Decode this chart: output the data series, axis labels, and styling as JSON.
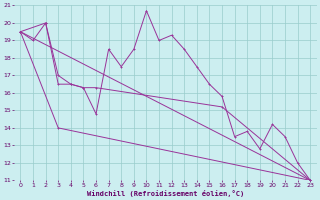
{
  "xlabel": "Windchill (Refroidissement éolien,°C)",
  "background_color": "#cceef0",
  "grid_color": "#99cccc",
  "line_color": "#993399",
  "xlim": [
    -0.5,
    23.5
  ],
  "ylim": [
    11,
    21
  ],
  "yticks": [
    11,
    12,
    13,
    14,
    15,
    16,
    17,
    18,
    19,
    20,
    21
  ],
  "xticks": [
    0,
    1,
    2,
    3,
    4,
    5,
    6,
    7,
    8,
    9,
    10,
    11,
    12,
    13,
    14,
    15,
    16,
    17,
    18,
    19,
    20,
    21,
    22,
    23
  ],
  "line1_x": [
    0,
    1,
    2,
    3,
    4,
    5,
    6,
    7,
    8,
    9,
    10,
    11,
    12,
    13,
    14,
    15,
    16,
    17,
    18,
    19,
    20,
    21,
    22,
    23
  ],
  "line1_y": [
    19.5,
    19.0,
    20.0,
    17.0,
    16.5,
    16.3,
    14.8,
    18.5,
    17.5,
    18.5,
    20.7,
    19.0,
    19.3,
    18.5,
    17.5,
    16.5,
    15.8,
    13.5,
    13.8,
    12.8,
    14.2,
    13.5,
    12.0,
    11.0
  ],
  "line2_x": [
    0,
    2,
    3,
    4,
    5,
    6,
    16,
    23
  ],
  "line2_y": [
    19.5,
    20.0,
    16.5,
    16.5,
    16.3,
    16.3,
    15.2,
    11.0
  ],
  "line3_x": [
    0,
    3,
    23
  ],
  "line3_y": [
    19.5,
    14.0,
    11.0
  ],
  "line4_x": [
    0,
    23
  ],
  "line4_y": [
    19.5,
    11.0
  ]
}
